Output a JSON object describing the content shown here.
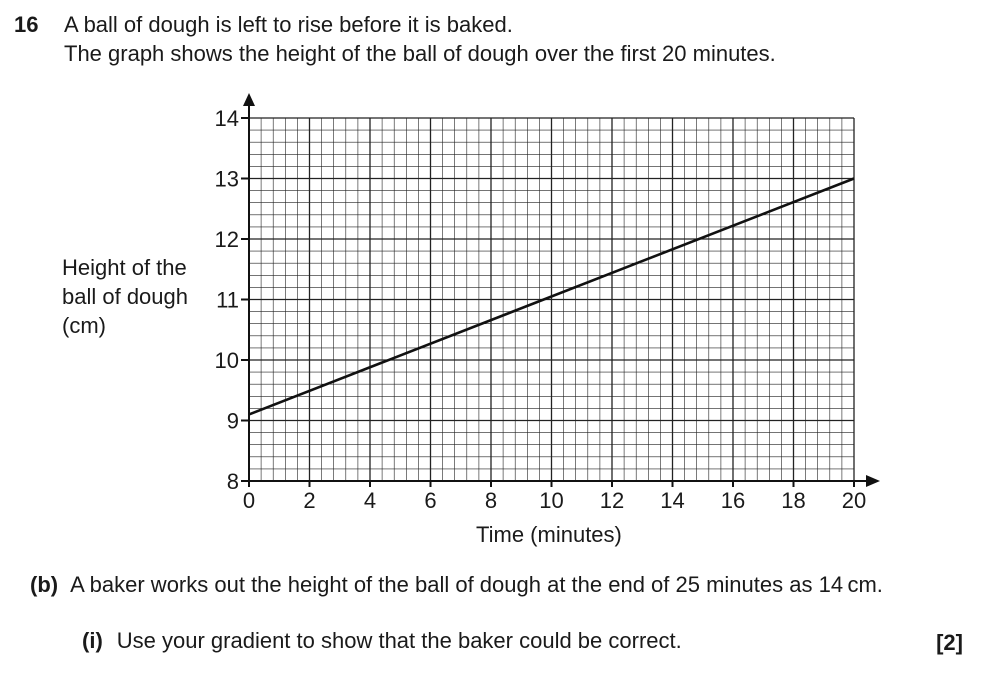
{
  "question": {
    "number": "16",
    "line1": "A ball of dough is left to rise before it is baked.",
    "line2": "The graph shows the height of the ball of dough over the first 20 minutes."
  },
  "part_b": {
    "label": "(b)",
    "text": "A baker works out the height of the ball of dough at the end of 25 minutes as 14 cm."
  },
  "part_i": {
    "label": "(i)",
    "text": "Use your gradient to show that the baker could be correct.",
    "marks": "[2]"
  },
  "chart_data": {
    "type": "line",
    "xlabel": "Time (minutes)",
    "ylabel_lines": [
      "Height of the",
      "ball of dough",
      "(cm)"
    ],
    "xlim": [
      0,
      20
    ],
    "ylim": [
      8,
      14
    ],
    "x_ticks": [
      "0",
      "2",
      "4",
      "6",
      "8",
      "10",
      "12",
      "14",
      "16",
      "18",
      "20"
    ],
    "y_ticks": [
      "8",
      "9",
      "10",
      "11",
      "12",
      "13",
      "14"
    ],
    "grid": true,
    "series": [
      {
        "x": [
          0,
          20
        ],
        "y": [
          9.1,
          13.0
        ]
      }
    ]
  }
}
